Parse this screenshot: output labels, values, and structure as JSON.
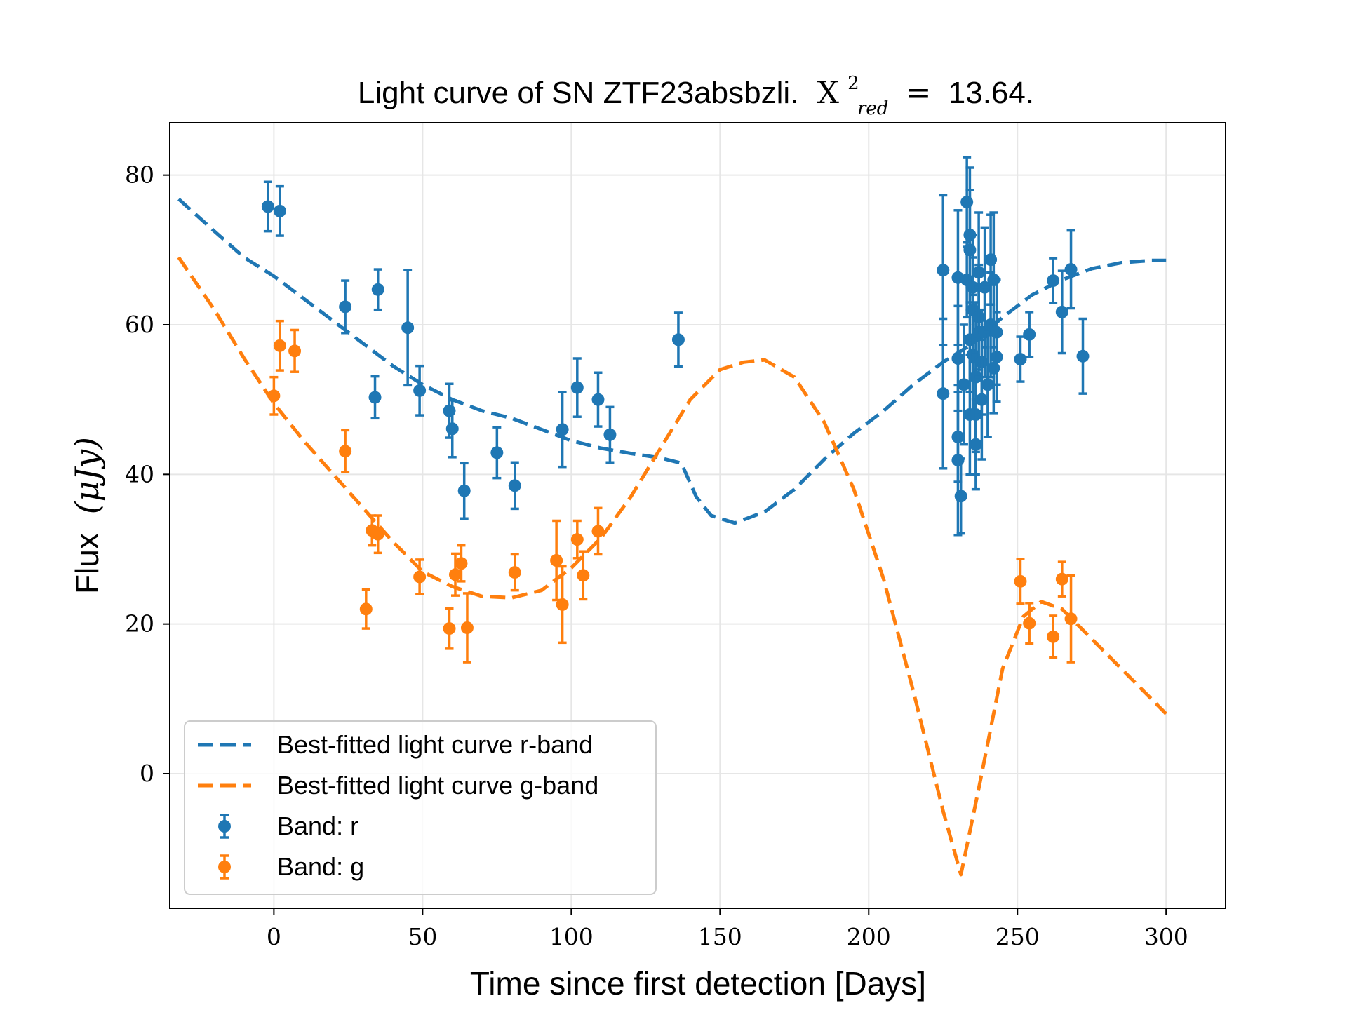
{
  "chart_data": {
    "type": "scatter",
    "title": "Light curve of SN ZTF23absbzli.",
    "title_stat": {
      "symbol": "X",
      "superscript": "2",
      "subscript": "red",
      "equals": "=",
      "value": "13.64."
    },
    "xlabel": "Time since first detection [Days]",
    "ylabel": {
      "text": "Flux",
      "unit": "(μJy)"
    },
    "xlim": [
      -35,
      320
    ],
    "ylim": [
      -18,
      87
    ],
    "xticks": [
      0,
      50,
      100,
      150,
      200,
      250,
      300
    ],
    "yticks": [
      0,
      20,
      40,
      60,
      80
    ],
    "grid": true,
    "legend_position": "lower-left",
    "colors": {
      "r": "#1f77b4",
      "g": "#ff7f0e"
    },
    "fit_curves": [
      {
        "name": "Best-fitted light curve r-band",
        "color": "#1f77b4",
        "points": [
          [
            -32,
            76.8
          ],
          [
            -20,
            72.5
          ],
          [
            -10,
            69
          ],
          [
            0,
            66.5
          ],
          [
            10,
            63.5
          ],
          [
            20,
            60.5
          ],
          [
            30,
            57.5
          ],
          [
            40,
            54.5
          ],
          [
            50,
            52
          ],
          [
            60,
            50
          ],
          [
            70,
            48.5
          ],
          [
            80,
            47.5
          ],
          [
            90,
            46
          ],
          [
            100,
            44.5
          ],
          [
            110,
            43.5
          ],
          [
            120,
            42.8
          ],
          [
            130,
            42.2
          ],
          [
            137,
            41.5
          ],
          [
            142,
            37
          ],
          [
            147,
            34.5
          ],
          [
            155,
            33.5
          ],
          [
            165,
            35
          ],
          [
            175,
            38
          ],
          [
            185,
            42
          ],
          [
            195,
            45.5
          ],
          [
            205,
            48.5
          ],
          [
            215,
            52
          ],
          [
            225,
            55
          ],
          [
            235,
            57.5
          ],
          [
            245,
            61
          ],
          [
            255,
            64
          ],
          [
            265,
            66
          ],
          [
            275,
            67.5
          ],
          [
            285,
            68.3
          ],
          [
            295,
            68.6
          ],
          [
            300,
            68.6
          ]
        ]
      },
      {
        "name": "Best-fitted light curve g-band",
        "color": "#ff7f0e",
        "points": [
          [
            -32,
            69
          ],
          [
            -20,
            62
          ],
          [
            -10,
            55.5
          ],
          [
            0,
            49.5
          ],
          [
            10,
            44.5
          ],
          [
            20,
            40
          ],
          [
            30,
            35.5
          ],
          [
            40,
            31
          ],
          [
            50,
            27
          ],
          [
            60,
            25
          ],
          [
            70,
            23.7
          ],
          [
            80,
            23.5
          ],
          [
            90,
            24.5
          ],
          [
            100,
            27.5
          ],
          [
            110,
            31.5
          ],
          [
            120,
            37
          ],
          [
            130,
            43.5
          ],
          [
            140,
            50
          ],
          [
            150,
            54
          ],
          [
            158,
            55
          ],
          [
            165,
            55.3
          ],
          [
            175,
            53
          ],
          [
            185,
            47
          ],
          [
            195,
            38
          ],
          [
            205,
            26
          ],
          [
            215,
            11
          ],
          [
            225,
            -5
          ],
          [
            231,
            -13.5
          ],
          [
            237,
            -2
          ],
          [
            245,
            14
          ],
          [
            252,
            21
          ],
          [
            258,
            23
          ],
          [
            265,
            22
          ],
          [
            275,
            18
          ],
          [
            285,
            14
          ],
          [
            295,
            10
          ],
          [
            300,
            8
          ]
        ]
      }
    ],
    "series": [
      {
        "name": "Band: r",
        "color": "#1f77b4",
        "points": [
          [
            -2,
            75.8,
            3.3
          ],
          [
            2,
            75.2,
            3.3
          ],
          [
            24,
            62.4,
            3.5
          ],
          [
            34,
            50.3,
            2.8
          ],
          [
            35,
            64.7,
            2.7
          ],
          [
            45,
            59.6,
            7.7
          ],
          [
            49,
            51.2,
            3.3
          ],
          [
            59,
            48.5,
            3.6
          ],
          [
            60,
            46.1,
            3.8
          ],
          [
            64,
            37.8,
            3.7
          ],
          [
            75,
            42.9,
            3.4
          ],
          [
            81,
            38.5,
            3.1
          ],
          [
            97,
            46,
            5
          ],
          [
            102,
            51.6,
            3.9
          ],
          [
            109,
            50,
            3.6
          ],
          [
            113,
            45.3,
            3.7
          ],
          [
            136,
            58,
            3.6
          ],
          [
            225,
            67.3,
            10
          ],
          [
            225,
            50.8,
            10
          ],
          [
            230,
            55.5,
            7
          ],
          [
            230,
            45,
            6
          ],
          [
            230,
            41.9,
            10
          ],
          [
            230,
            66.3,
            9
          ],
          [
            231,
            37.1,
            5
          ],
          [
            232,
            52,
            8
          ],
          [
            233,
            76.4,
            6
          ],
          [
            233,
            66,
            5
          ],
          [
            234,
            48,
            8
          ],
          [
            234,
            70,
            8
          ],
          [
            234,
            58,
            7
          ],
          [
            234,
            72,
            9
          ],
          [
            235,
            65,
            7
          ],
          [
            235,
            56,
            8
          ],
          [
            235,
            62,
            7
          ],
          [
            236,
            53,
            10
          ],
          [
            236,
            48,
            8
          ],
          [
            236,
            44,
            6
          ],
          [
            237,
            67,
            8
          ],
          [
            237,
            61,
            7
          ],
          [
            237,
            59,
            6
          ],
          [
            238,
            55,
            7
          ],
          [
            238,
            50,
            8
          ],
          [
            239,
            65,
            8
          ],
          [
            239,
            59,
            6
          ],
          [
            240,
            52,
            7
          ],
          [
            241,
            68.7,
            6
          ],
          [
            241,
            60,
            7
          ],
          [
            242,
            66,
            9
          ],
          [
            242,
            54.2,
            6
          ],
          [
            243,
            55.7,
            6
          ],
          [
            243,
            59,
            7
          ],
          [
            251,
            55.4,
            3
          ],
          [
            254,
            58.7,
            3
          ],
          [
            262,
            65.9,
            3
          ],
          [
            265,
            61.7,
            5.5
          ],
          [
            268,
            67.4,
            5.2
          ],
          [
            272,
            55.8,
            5
          ]
        ]
      },
      {
        "name": "Band: g",
        "color": "#ff7f0e",
        "points": [
          [
            0,
            50.5,
            2.5
          ],
          [
            2,
            57.2,
            3.3
          ],
          [
            7,
            56.5,
            2.8
          ],
          [
            24,
            43.1,
            2.8
          ],
          [
            31,
            22,
            2.6
          ],
          [
            33,
            32.5,
            2
          ],
          [
            35,
            32,
            2.5
          ],
          [
            49,
            26.3,
            2.3
          ],
          [
            59,
            19.4,
            2.7
          ],
          [
            61,
            26.6,
            2.8
          ],
          [
            63,
            28.1,
            2.4
          ],
          [
            65,
            19.5,
            4.6
          ],
          [
            81,
            26.9,
            2.4
          ],
          [
            95,
            28.5,
            5.3
          ],
          [
            97,
            22.6,
            5.1
          ],
          [
            102,
            31.3,
            2.5
          ],
          [
            104,
            26.5,
            3.2
          ],
          [
            109,
            32.4,
            3.1
          ],
          [
            251,
            25.7,
            3
          ],
          [
            254,
            20.1,
            2.7
          ],
          [
            262,
            18.3,
            2.8
          ],
          [
            265,
            26,
            2.3
          ],
          [
            268,
            20.7,
            5.8
          ]
        ]
      }
    ]
  }
}
